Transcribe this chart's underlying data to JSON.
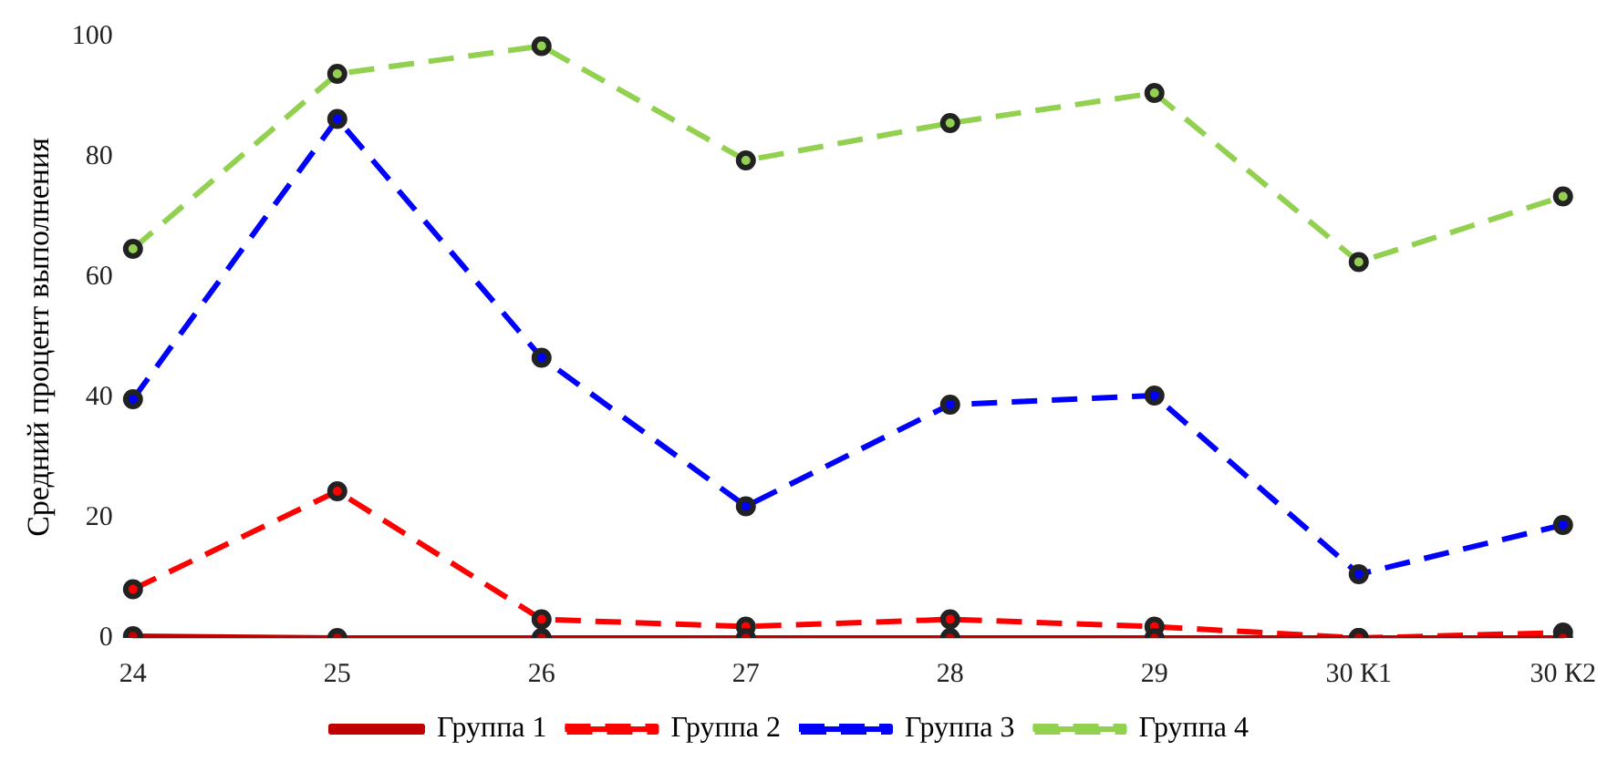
{
  "chart_data": {
    "type": "line",
    "ylabel": "Средний процент выполнения",
    "categories": [
      "24",
      "25",
      "26",
      "27",
      "28",
      "29",
      "30 К1",
      "30 К2"
    ],
    "series": [
      {
        "name": "Группа 1",
        "color": "#c00000",
        "line_style": "solid",
        "values": [
          0.3,
          0,
          0,
          0,
          0,
          0,
          0,
          0
        ]
      },
      {
        "name": "Группа 2",
        "color": "#ff0000",
        "line_style": "dashed",
        "values": [
          8.1,
          24.4,
          3.1,
          1.9,
          3.1,
          1.9,
          0,
          0.9
        ]
      },
      {
        "name": "Группа 3",
        "color": "#0000ff",
        "line_style": "dashed",
        "values": [
          39.7,
          86.3,
          46.6,
          21.9,
          38.8,
          40.3,
          10.6,
          18.8
        ]
      },
      {
        "name": "Группа 4",
        "color": "#92d050",
        "line_style": "dashed",
        "values": [
          64.7,
          93.8,
          98.4,
          79.4,
          85.6,
          90.6,
          62.5,
          73.4
        ]
      }
    ],
    "ylim": [
      0,
      100
    ],
    "yticks": [
      0,
      20,
      40,
      60,
      80,
      100
    ],
    "grid": false,
    "legend": "bottom",
    "marker": "circle"
  }
}
